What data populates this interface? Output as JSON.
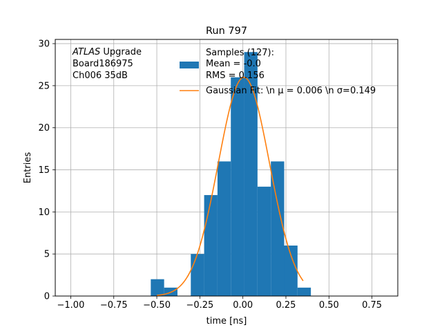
{
  "chart_data": {
    "type": "bar",
    "title": "Run 797",
    "xlabel": "time [ns]",
    "ylabel": "Entries",
    "xlim": [
      -1.09,
      0.9
    ],
    "ylim": [
      0,
      30.5
    ],
    "grid": true,
    "xticks": [
      -1.0,
      -0.75,
      -0.5,
      -0.25,
      0.0,
      0.25,
      0.5,
      0.75
    ],
    "xtick_labels": [
      "−1.00",
      "−0.75",
      "−0.50",
      "−0.25",
      "0.00",
      "0.25",
      "0.50",
      "0.75"
    ],
    "yticks": [
      0,
      5,
      10,
      15,
      20,
      25,
      30
    ],
    "ytick_labels": [
      "0",
      "5",
      "10",
      "15",
      "20",
      "25",
      "30"
    ],
    "annotation": {
      "atlas": "ATLAS",
      "upgrade": " Upgrade",
      "lines": [
        " Board186975",
        " Ch006 35dB"
      ]
    },
    "histogram": {
      "color": "#1f77b4",
      "bin_width": 0.0775,
      "bin_left_edges": [
        -0.535,
        -0.4575,
        -0.38,
        -0.3025,
        -0.225,
        -0.1475,
        -0.07,
        0.0075,
        0.085,
        0.1625,
        0.24,
        0.3175
      ],
      "counts": [
        2,
        1,
        0,
        5,
        12,
        16,
        26,
        29,
        13,
        16,
        6,
        1
      ]
    },
    "gaussian": {
      "color": "#ff7f0e",
      "amplitude": 26,
      "mu": 0.006,
      "sigma": 0.149,
      "x_range": [
        -0.5,
        0.35
      ]
    },
    "legend": {
      "position": "top-right",
      "entries": [
        {
          "kind": "patch",
          "color": "#1f77b4",
          "lines": [
            "Samples (127):",
            " Mean = -0.0",
            " RMS = 0.156"
          ]
        },
        {
          "kind": "line",
          "color": "#ff7f0e",
          "lines": [
            "Gaussian Fit: \\n μ = 0.006 \\n σ=0.149"
          ]
        }
      ]
    }
  }
}
